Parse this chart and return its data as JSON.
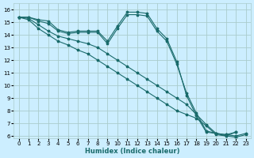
{
  "xlabel": "Humidex (Indice chaleur)",
  "bg_color": "#cceeff",
  "grid_color": "#aacccc",
  "line_color": "#1a6b6b",
  "xlim": [
    -0.5,
    23.5
  ],
  "ylim": [
    5.8,
    16.5
  ],
  "xticks": [
    0,
    1,
    2,
    3,
    4,
    5,
    6,
    7,
    8,
    9,
    10,
    11,
    12,
    13,
    14,
    15,
    16,
    17,
    18,
    19,
    20,
    21,
    22,
    23
  ],
  "yticks": [
    6,
    7,
    8,
    9,
    10,
    11,
    12,
    13,
    14,
    15,
    16
  ],
  "line1": [
    15.4,
    15.4,
    15.2,
    15.1,
    14.4,
    14.2,
    14.3,
    14.3,
    14.3,
    13.5,
    14.7,
    15.8,
    15.8,
    15.7,
    14.5,
    13.7,
    11.9,
    9.2,
    7.6,
    6.3,
    6.2,
    6.1,
    6.3,
    null
  ],
  "line2": [
    15.4,
    15.4,
    15.1,
    14.9,
    14.3,
    14.1,
    14.2,
    14.2,
    14.2,
    13.3,
    14.5,
    15.6,
    15.6,
    15.5,
    14.3,
    13.5,
    11.7,
    9.4,
    7.8,
    6.4,
    6.2,
    6.0,
    6.3,
    null
  ],
  "line3": [
    15.4,
    15.3,
    14.8,
    14.3,
    13.9,
    13.7,
    13.5,
    13.3,
    13.0,
    12.5,
    12.0,
    11.5,
    11.0,
    10.5,
    10.0,
    9.5,
    9.0,
    8.5,
    7.7,
    6.9,
    6.2,
    6.1,
    6.0,
    6.2
  ],
  "line4": [
    15.4,
    15.2,
    14.5,
    14.0,
    13.5,
    13.2,
    12.8,
    12.5,
    12.0,
    11.5,
    11.0,
    10.5,
    10.0,
    9.5,
    9.0,
    8.5,
    8.0,
    7.7,
    7.4,
    6.8,
    6.1,
    6.0,
    5.9,
    6.1
  ]
}
